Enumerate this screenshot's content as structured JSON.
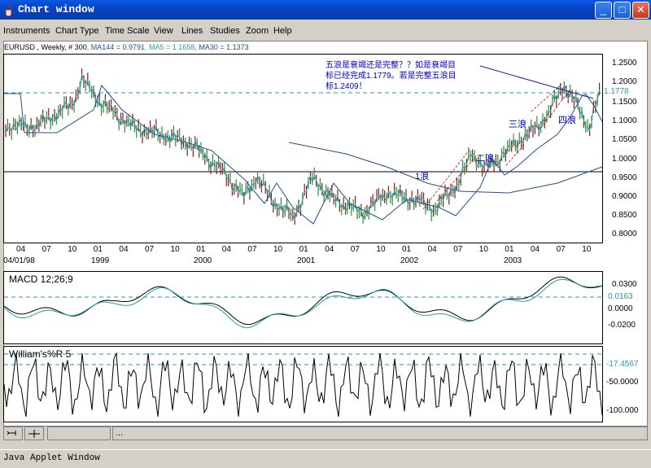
{
  "window": {
    "title": "Chart window",
    "buttons": {
      "minimize": "_",
      "maximize": "□",
      "close": "✕"
    }
  },
  "menu": [
    "Instruments",
    "Chart Type",
    "Time Scale",
    "View",
    "Lines",
    "Studies",
    "Zoom",
    "Help"
  ],
  "main_chart": {
    "header_symbol": "EURUSD , Weekly, # 300",
    "header_ma144": ", MA144 = 0.9791",
    "header_ma5": ", MA5 = 1.1658",
    "header_ma30": ", MA30 = 1.1373",
    "price_ticks": [
      "1.2500",
      "1.2000",
      "1.1500",
      "1.1000",
      "1.0500",
      "1.0000",
      "0.9500",
      "0.9000",
      "0.8500",
      "0.8000"
    ],
    "last_price_label": "1.1778",
    "month_ticks": [
      "04",
      "07",
      "10",
      "01",
      "04",
      "07",
      "10",
      "01",
      "04",
      "07",
      "10",
      "01",
      "04",
      "07",
      "10",
      "01",
      "04",
      "07",
      "10",
      "01",
      "04",
      "07",
      "10"
    ],
    "year_labels": [
      "04/01/98",
      "1999",
      "2000",
      "2001",
      "2002",
      "2003"
    ],
    "annotation_lines": [
      "五浪是衰竭还是完整？？如是衰竭目",
      "标已经完成1.1779。若是完整五浪目",
      "标1.2409！"
    ],
    "wave_labels": [
      "1浪",
      "二浪",
      "三浪",
      "四浪"
    ]
  },
  "macd": {
    "label": "MACD 12;26;9",
    "ticks": [
      "0.0300",
      "0.0163",
      "0.0000",
      "-0.0200"
    ]
  },
  "williams": {
    "label": "William's%R 5",
    "ticks": [
      "-17.4567",
      "-50.0000",
      "-100.000"
    ]
  },
  "toolbar": {
    "ellipsis": "..."
  },
  "status": "Java Applet Window",
  "colors": {
    "titlebar": "#0a58e3",
    "ma_line": "#1f4f8f",
    "signal": "#2a9aa6",
    "annotation": "#0000cc",
    "trend": "#cc0000"
  }
}
